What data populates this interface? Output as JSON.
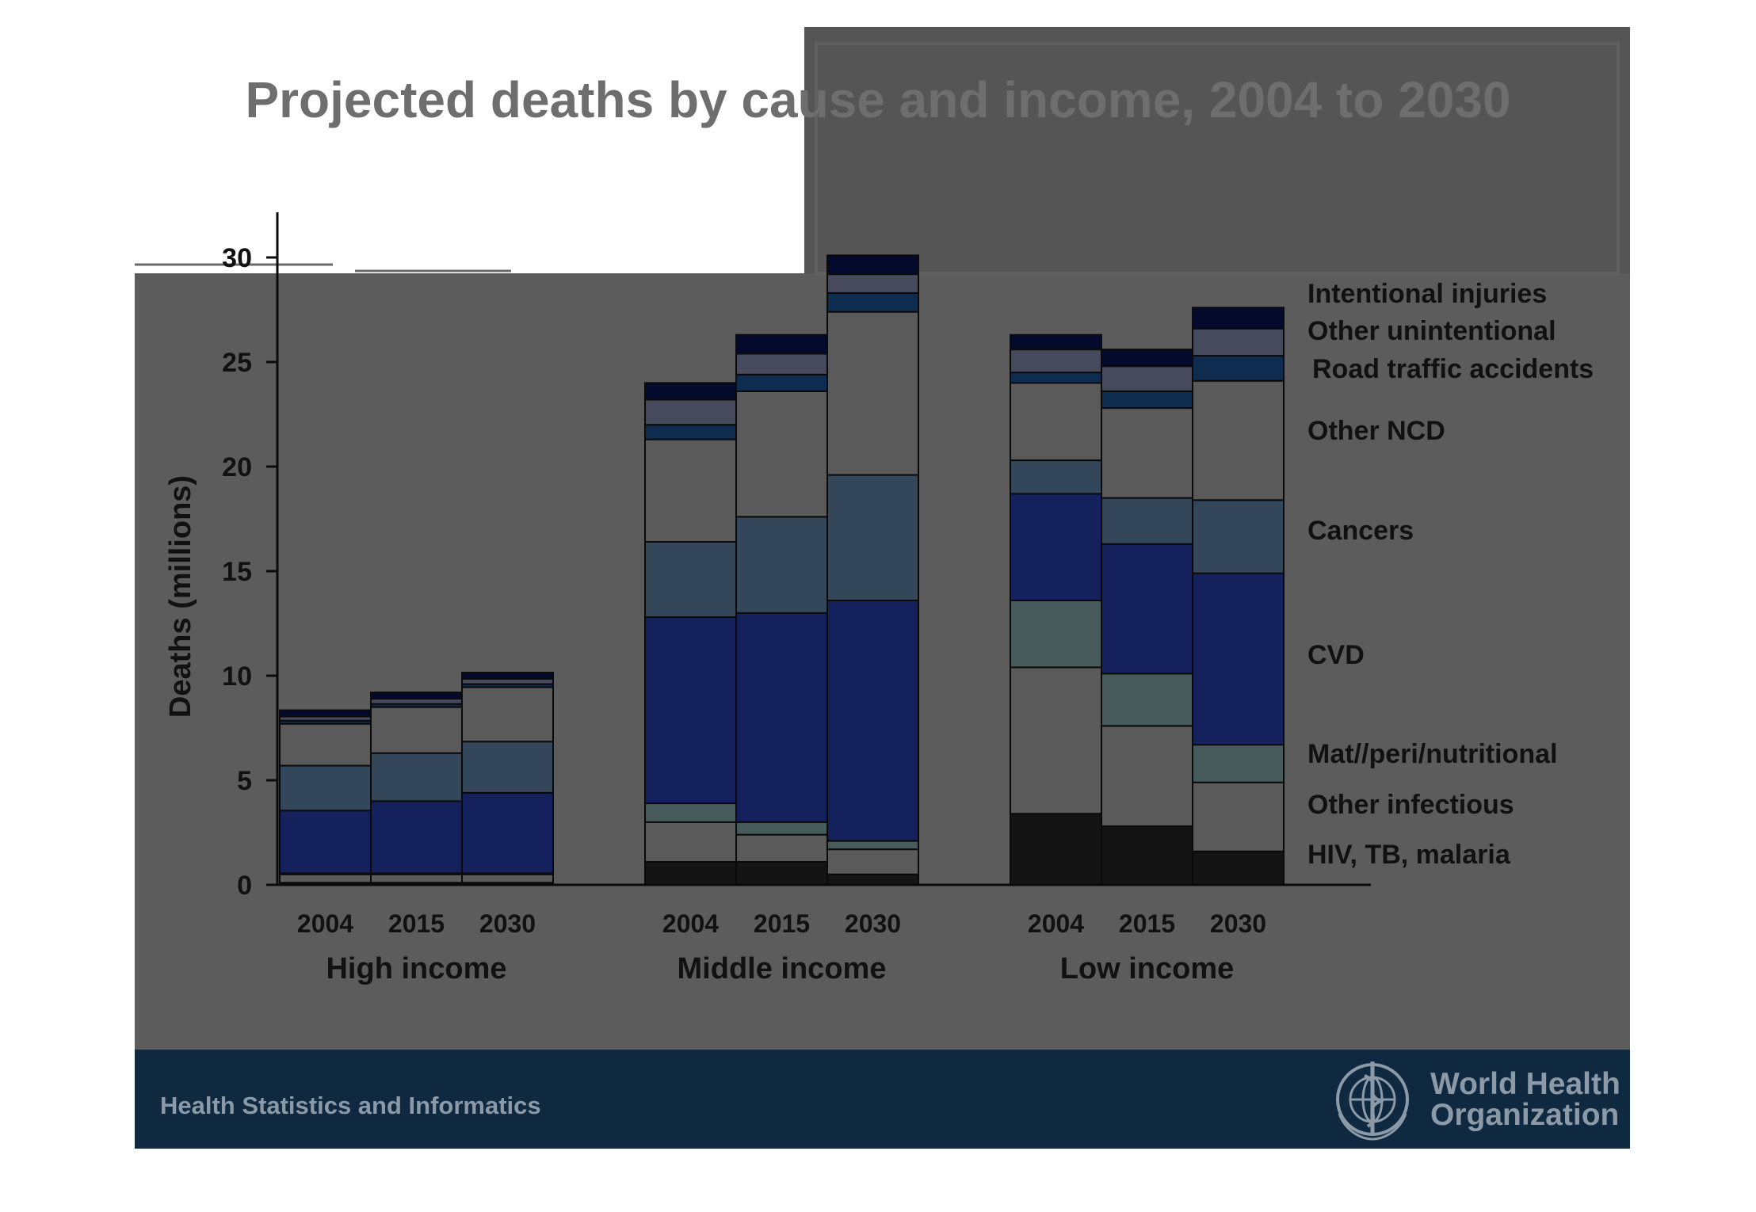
{
  "colors": {
    "slide_bg": "#5c5c5c",
    "panel_bg": "#555555",
    "footer_bg": "#0e2940",
    "title": "#6e6e6e",
    "text": "#111111",
    "footer_text": "#8c9aa8",
    "logo": "#8c9aa8"
  },
  "footer": {
    "left_text": "Health Statistics and Informatics",
    "logo_line1": "World Health",
    "logo_line2": "Organization",
    "logo_icon": "who-emblem-icon"
  },
  "chart_data": {
    "type": "bar",
    "stacked": true,
    "title": "Projected deaths by cause and income, 2004 to 2030",
    "ylabel": "Deaths (millions)",
    "xlabel": "",
    "ylim": [
      0,
      32
    ],
    "yticks": [
      0,
      5,
      10,
      15,
      20,
      25,
      30
    ],
    "grid": false,
    "legend_placement": "right (labels beside last bar)",
    "groups": [
      {
        "label": "High income",
        "years": [
          "2004",
          "2015",
          "2030"
        ]
      },
      {
        "label": "Middle income",
        "years": [
          "2004",
          "2015",
          "2030"
        ]
      },
      {
        "label": "Low income",
        "years": [
          "2004",
          "2015",
          "2030"
        ]
      }
    ],
    "categories": [
      "High income 2004",
      "High income 2015",
      "High income 2030",
      "Middle income 2004",
      "Middle income 2015",
      "Middle income 2030",
      "Low income 2004",
      "Low income 2015",
      "Low income 2030"
    ],
    "series": [
      {
        "name": "HIV, TB, malaria",
        "color": "#141414",
        "values": [
          0.1,
          0.1,
          0.1,
          1.1,
          1.1,
          0.5,
          3.4,
          2.8,
          1.6
        ]
      },
      {
        "name": "Other infectious",
        "color": "#5a5a5a",
        "values": [
          0.4,
          0.4,
          0.4,
          1.9,
          1.3,
          1.2,
          7.0,
          4.8,
          3.3
        ]
      },
      {
        "name": "Mat//peri/nutritional",
        "color": "#475a5c",
        "values": [
          0.05,
          0.05,
          0.05,
          0.9,
          0.6,
          0.4,
          3.2,
          2.5,
          1.8
        ]
      },
      {
        "name": "CVD",
        "color": "#15215c",
        "values": [
          3.0,
          3.45,
          3.85,
          8.9,
          10.0,
          11.5,
          5.1,
          6.2,
          8.2
        ]
      },
      {
        "name": "Cancers",
        "color": "#34475a",
        "values": [
          2.15,
          2.3,
          2.45,
          3.6,
          4.6,
          6.0,
          1.6,
          2.2,
          3.5
        ]
      },
      {
        "name": "Other NCD",
        "color": "#5a5a5a",
        "values": [
          2.0,
          2.2,
          2.6,
          4.9,
          6.0,
          7.8,
          3.7,
          4.3,
          5.7
        ]
      },
      {
        "name": "Road traffic accidents",
        "color": "#0d2c50",
        "values": [
          0.15,
          0.15,
          0.15,
          0.7,
          0.8,
          0.9,
          0.5,
          0.8,
          1.2
        ]
      },
      {
        "name": "Other unintentional",
        "color": "#474a5c",
        "values": [
          0.2,
          0.25,
          0.25,
          1.2,
          1.0,
          0.9,
          1.1,
          1.2,
          1.3
        ]
      },
      {
        "name": "Intentional injuries",
        "color": "#040a2c",
        "values": [
          0.3,
          0.3,
          0.3,
          0.8,
          0.9,
          0.9,
          0.7,
          0.8,
          1.0
        ]
      }
    ]
  }
}
